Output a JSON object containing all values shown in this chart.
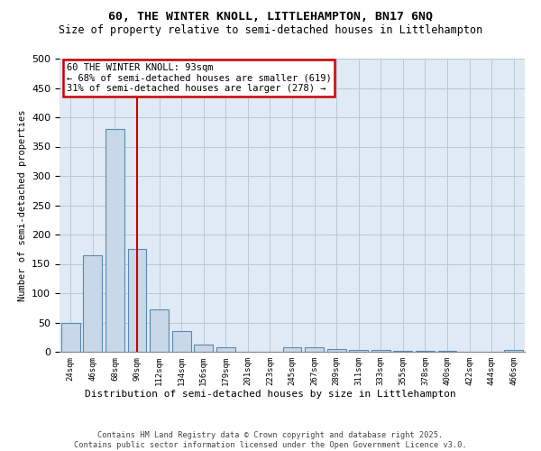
{
  "title1": "60, THE WINTER KNOLL, LITTLEHAMPTON, BN17 6NQ",
  "title2": "Size of property relative to semi-detached houses in Littlehampton",
  "xlabel": "Distribution of semi-detached houses by size in Littlehampton",
  "ylabel": "Number of semi-detached properties",
  "categories": [
    "24sqm",
    "46sqm",
    "68sqm",
    "90sqm",
    "112sqm",
    "134sqm",
    "156sqm",
    "179sqm",
    "201sqm",
    "223sqm",
    "245sqm",
    "267sqm",
    "289sqm",
    "311sqm",
    "333sqm",
    "355sqm",
    "378sqm",
    "400sqm",
    "422sqm",
    "444sqm",
    "466sqm"
  ],
  "values": [
    50,
    165,
    380,
    175,
    72,
    35,
    12,
    7,
    0,
    0,
    7,
    8,
    5,
    3,
    3,
    2,
    1,
    1,
    0,
    0,
    3
  ],
  "bar_color": "#c8d8e8",
  "bar_edge_color": "#5a8ab0",
  "grid_color": "#b8c8d8",
  "background_color": "#e0eaf4",
  "annotation_text_line1": "60 THE WINTER KNOLL: 93sqm",
  "annotation_text_line2": "← 68% of semi-detached houses are smaller (619)",
  "annotation_text_line3": "31% of semi-detached houses are larger (278) →",
  "annotation_box_facecolor": "#ffffff",
  "annotation_box_edgecolor": "#cc0000",
  "vline_color": "#cc0000",
  "footnote": "Contains HM Land Registry data © Crown copyright and database right 2025.\nContains public sector information licensed under the Open Government Licence v3.0.",
  "ylim": [
    0,
    500
  ],
  "yticks": [
    0,
    50,
    100,
    150,
    200,
    250,
    300,
    350,
    400,
    450,
    500
  ],
  "vline_position": 3.0
}
